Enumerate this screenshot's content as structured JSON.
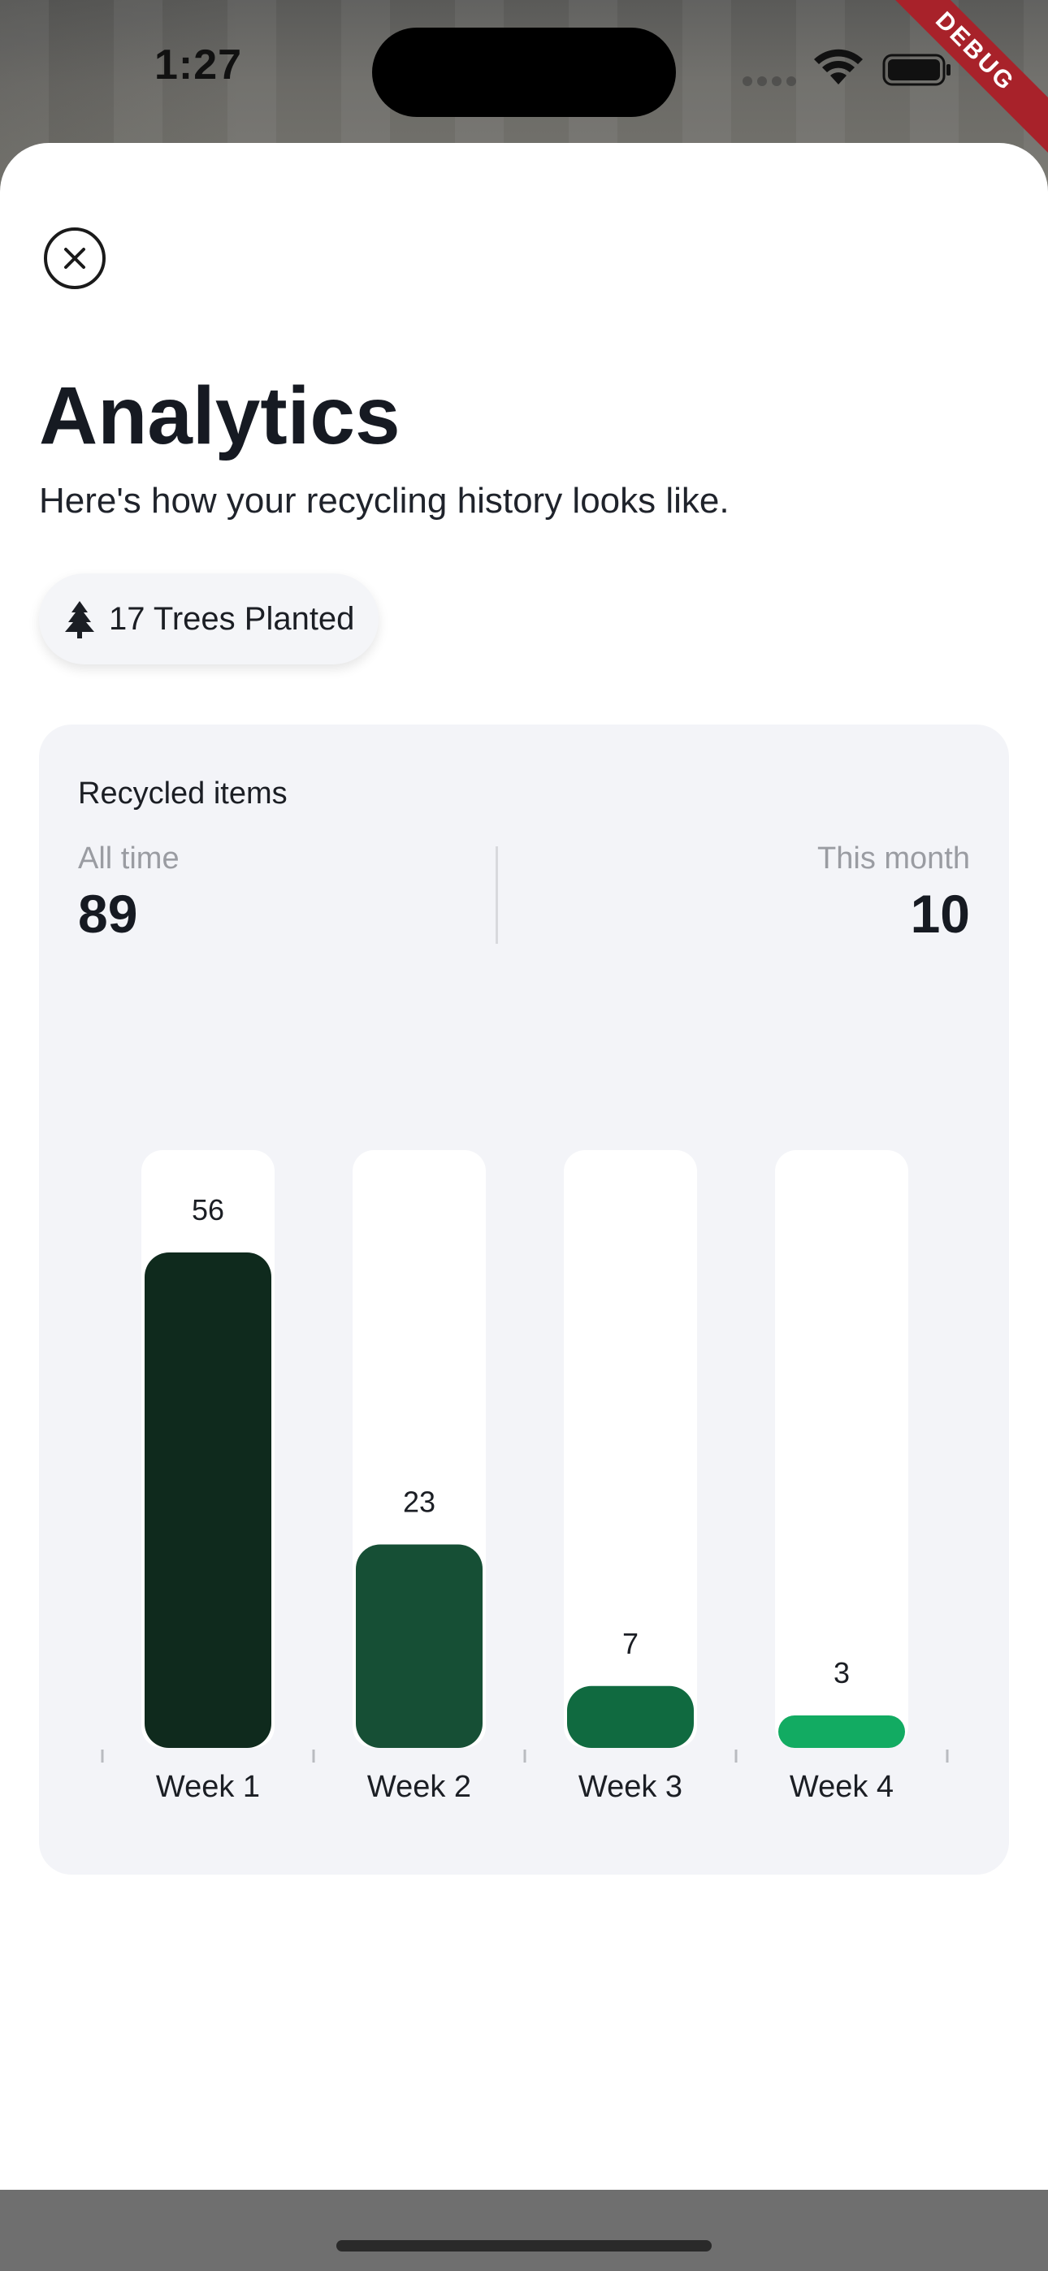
{
  "status_bar": {
    "time": "1:27",
    "debug_banner": "DEBUG"
  },
  "sheet": {
    "title": "Analytics",
    "subtitle": "Here's how your recycling history looks like.",
    "trees_chip": {
      "icon": "tree-icon",
      "label": "17 Trees Planted"
    }
  },
  "card": {
    "title": "Recycled items",
    "all_time": {
      "label": "All time",
      "value": "89"
    },
    "this_month": {
      "label": "This month",
      "value": "10"
    }
  },
  "colors": {
    "week1": "#0f2a1d",
    "week2": "#164f35",
    "week3": "#106a40",
    "week4": "#12ab62",
    "track": "#ffffff",
    "card_bg": "#f3f4f8"
  },
  "chart_data": {
    "type": "bar",
    "categories": [
      "Week 1",
      "Week 2",
      "Week 3",
      "Week 4"
    ],
    "values": [
      56,
      23,
      7,
      3
    ],
    "value_labels": [
      "56",
      "23",
      "7",
      "3"
    ],
    "ylim": [
      0,
      56
    ],
    "title": "",
    "xlabel": "",
    "ylabel": "",
    "grid": false
  }
}
